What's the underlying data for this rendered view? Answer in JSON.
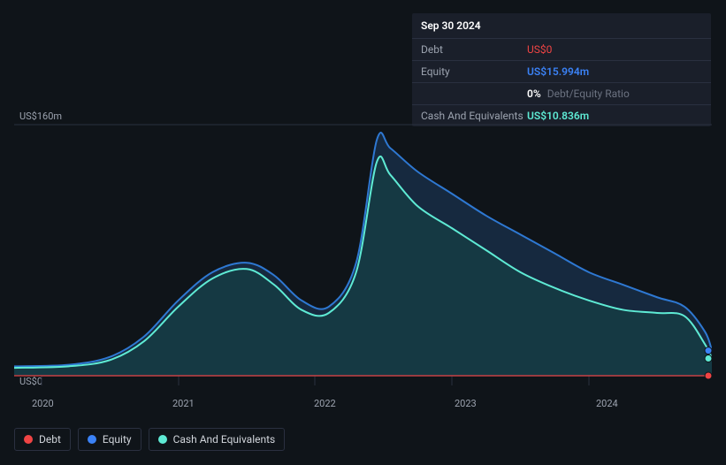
{
  "tooltip": {
    "date": "Sep 30 2024",
    "debt_label": "Debt",
    "debt_value": "US$0",
    "equity_label": "Equity",
    "equity_value": "US$15.994m",
    "ratio_pct": "0%",
    "ratio_text": "Debt/Equity Ratio",
    "cash_label": "Cash And Equivalents",
    "cash_value": "US$10.836m"
  },
  "chart": {
    "type": "area",
    "background_color": "#0f1419",
    "grid_color": "#2a3040",
    "xlim": [
      2019.8,
      2024.9
    ],
    "ylim": [
      0,
      160
    ],
    "ytick_labels": [
      "US$0",
      "US$160m"
    ],
    "xtick_labels": [
      "2020",
      "2021",
      "2022",
      "2023",
      "2024"
    ],
    "xtick_positions": [
      2020,
      2021,
      2022,
      2023,
      2024
    ],
    "series": {
      "equity": {
        "color": "#2e78d2",
        "fill": "#1e3a5f",
        "fill_opacity": 0.55,
        "line_width": 2,
        "points": [
          [
            2019.8,
            6
          ],
          [
            2020.2,
            7
          ],
          [
            2020.5,
            12
          ],
          [
            2020.75,
            25
          ],
          [
            2021.0,
            48
          ],
          [
            2021.25,
            66
          ],
          [
            2021.5,
            72
          ],
          [
            2021.7,
            64
          ],
          [
            2021.9,
            48
          ],
          [
            2022.1,
            44
          ],
          [
            2022.3,
            72
          ],
          [
            2022.45,
            150
          ],
          [
            2022.55,
            145
          ],
          [
            2022.75,
            130
          ],
          [
            2023.0,
            116
          ],
          [
            2023.25,
            102
          ],
          [
            2023.5,
            90
          ],
          [
            2023.75,
            78
          ],
          [
            2024.0,
            66
          ],
          [
            2024.25,
            58
          ],
          [
            2024.5,
            50
          ],
          [
            2024.7,
            44
          ],
          [
            2024.85,
            28
          ],
          [
            2024.9,
            16
          ]
        ]
      },
      "cash": {
        "color": "#5eead4",
        "fill": "#134e4a",
        "fill_opacity": 0.45,
        "line_width": 2,
        "points": [
          [
            2019.8,
            5
          ],
          [
            2020.2,
            6
          ],
          [
            2020.5,
            10
          ],
          [
            2020.75,
            22
          ],
          [
            2021.0,
            44
          ],
          [
            2021.25,
            62
          ],
          [
            2021.5,
            68
          ],
          [
            2021.7,
            58
          ],
          [
            2021.9,
            42
          ],
          [
            2022.1,
            40
          ],
          [
            2022.3,
            66
          ],
          [
            2022.45,
            136
          ],
          [
            2022.55,
            128
          ],
          [
            2022.75,
            108
          ],
          [
            2023.0,
            94
          ],
          [
            2023.25,
            80
          ],
          [
            2023.5,
            66
          ],
          [
            2023.75,
            56
          ],
          [
            2024.0,
            48
          ],
          [
            2024.25,
            42
          ],
          [
            2024.5,
            40
          ],
          [
            2024.7,
            38
          ],
          [
            2024.85,
            20
          ],
          [
            2024.9,
            11
          ]
        ]
      },
      "debt": {
        "color": "#ef4444",
        "line_width": 2,
        "points": [
          [
            2019.8,
            0
          ],
          [
            2024.9,
            0
          ]
        ]
      }
    },
    "end_markers": [
      {
        "color": "#3b82f6",
        "value": 16
      },
      {
        "color": "#5eead4",
        "value": 11
      },
      {
        "color": "#ef4444",
        "value": 0
      }
    ]
  },
  "legend": {
    "debt": "Debt",
    "equity": "Equity",
    "cash": "Cash And Equivalents"
  },
  "colors": {
    "debt": "#ef4444",
    "equity": "#3b82f6",
    "cash": "#5eead4"
  }
}
